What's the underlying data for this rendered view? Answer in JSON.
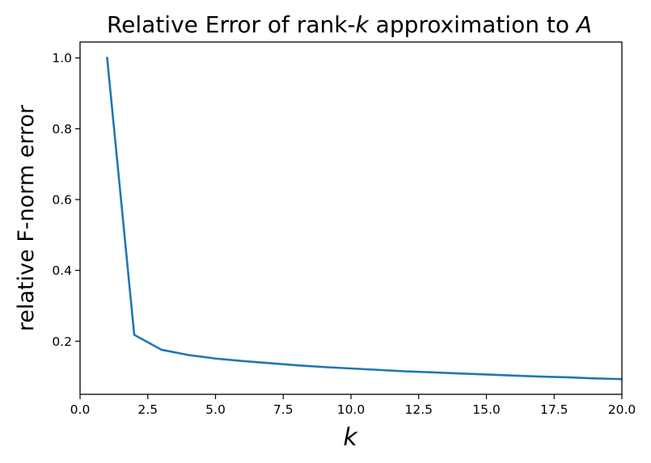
{
  "chart_data": {
    "type": "line",
    "title_parts": [
      "Relative Error of rank-",
      "k",
      " approximation to ",
      "A"
    ],
    "xlabel": "k",
    "ylabel": "relative F-norm error",
    "xlim": [
      0,
      20
    ],
    "ylim": [
      0.05,
      1.045
    ],
    "xticks": [
      0,
      2.5,
      5,
      7.5,
      10,
      12.5,
      15,
      17.5,
      20
    ],
    "xtick_labels": [
      "0.0",
      "2.5",
      "5.0",
      "7.5",
      "10.0",
      "12.5",
      "15.0",
      "17.5",
      "20.0"
    ],
    "yticks": [
      0.2,
      0.4,
      0.6,
      0.8,
      1.0
    ],
    "ytick_labels": [
      "0.2",
      "0.4",
      "0.6",
      "0.8",
      "1.0"
    ],
    "grid": false,
    "line_color": "#1f77b4",
    "series": [
      {
        "x": [
          1,
          2,
          3,
          4,
          5,
          6,
          7,
          8,
          9,
          10,
          11,
          12,
          13,
          14,
          15,
          16,
          17,
          18,
          19,
          20
        ],
        "y": [
          1.0,
          0.218,
          0.176,
          0.161,
          0.151,
          0.144,
          0.138,
          0.132,
          0.127,
          0.123,
          0.119,
          0.115,
          0.112,
          0.109,
          0.106,
          0.103,
          0.1,
          0.098,
          0.095,
          0.093
        ]
      }
    ]
  }
}
